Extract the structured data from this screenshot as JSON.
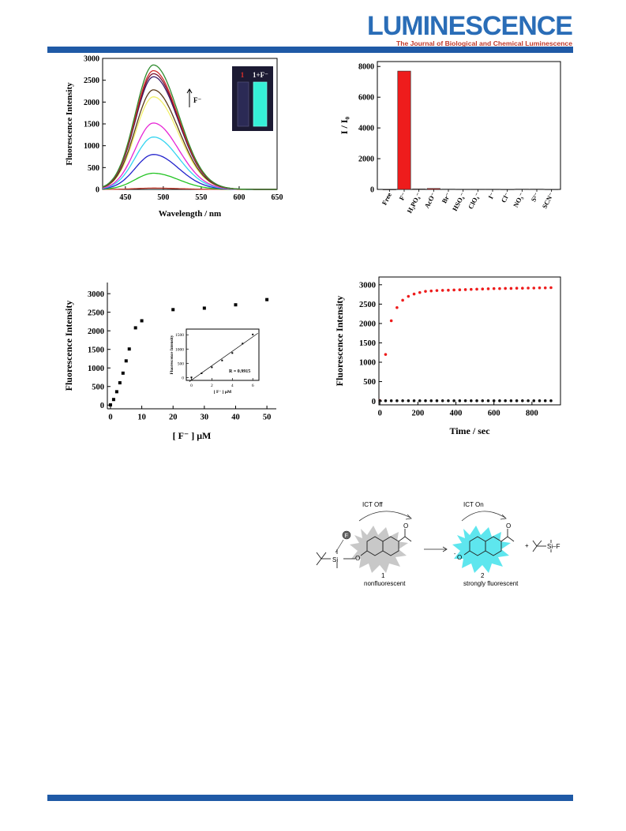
{
  "journal": {
    "title": "LUMINESCENCE",
    "subtitle": "The Journal of Biological and Chemical Luminescence",
    "brand_color": "#2a6db7",
    "subtitle_color": "#c0392b",
    "bar_color": "#1f5aa6"
  },
  "chart_data": [
    {
      "type": "line",
      "xlabel": "Wavelength / nm",
      "ylabel": "Fluorescence Intensity",
      "xlim": [
        420,
        650
      ],
      "ylim": [
        0,
        3000
      ],
      "x_ticks": [
        450,
        500,
        550,
        600,
        650
      ],
      "y_ticks": [
        0,
        500,
        1000,
        1500,
        2000,
        2500,
        3000
      ],
      "arrow_label": "F⁻",
      "inset_labels": [
        "1",
        "1+F⁻"
      ],
      "peak_x": 487,
      "series": [
        {
          "peak": 30,
          "color": "#c0392b"
        },
        {
          "peak": 370,
          "color": "#22c322"
        },
        {
          "peak": 800,
          "color": "#2222cc"
        },
        {
          "peak": 1200,
          "color": "#33d4f0"
        },
        {
          "peak": 1520,
          "color": "#e625d5"
        },
        {
          "peak": 2120,
          "color": "#f2f06a"
        },
        {
          "peak": 2280,
          "color": "#5a3a1a"
        },
        {
          "peak": 2580,
          "color": "#3a1a6a"
        },
        {
          "peak": 2650,
          "color": "#7a1030"
        },
        {
          "peak": 2720,
          "color": "#cf2a2a"
        },
        {
          "peak": 2850,
          "color": "#2e8b2e"
        }
      ]
    },
    {
      "type": "bar",
      "ylabel": "I / I₀",
      "ylim": [
        0,
        8000
      ],
      "y_ticks": [
        0,
        2000,
        4000,
        6000,
        8000
      ],
      "categories": [
        "Free",
        "F⁻",
        "H₂PO₄⁻",
        "AcO⁻",
        "Br⁻",
        "HSO₄⁻",
        "ClO₄⁻",
        "I⁻",
        "Cl⁻",
        "NO₃⁻",
        "S²⁻",
        "SCN⁻"
      ],
      "values": [
        1,
        7700,
        30,
        60,
        20,
        15,
        15,
        15,
        10,
        20,
        20,
        10
      ],
      "bar_color": "#ee1c1c"
    },
    {
      "type": "scatter",
      "xlabel": "[ F⁻ ] μM",
      "ylabel": "Fluorescence Intensity",
      "xlim": [
        -1,
        53
      ],
      "ylim": [
        -100,
        3300
      ],
      "x_ticks": [
        0,
        10,
        20,
        30,
        40,
        50
      ],
      "y_ticks": [
        0,
        500,
        1000,
        1500,
        2000,
        2500,
        3000
      ],
      "x": [
        0,
        1,
        2,
        3,
        4,
        5,
        6,
        8,
        10,
        20,
        30,
        40,
        50
      ],
      "y": [
        5,
        150,
        360,
        600,
        860,
        1190,
        1510,
        2080,
        2270,
        2570,
        2610,
        2700,
        2840
      ],
      "inset": {
        "type": "scatter",
        "xlabel": "[ F⁻ ] μM",
        "ylabel": "Fluorescence Intensity",
        "xlim": [
          -0.5,
          6.6
        ],
        "ylim": [
          -100,
          1700
        ],
        "x_ticks": [
          0,
          2,
          4,
          6
        ],
        "y_ticks": [
          0,
          500,
          1000,
          1500
        ],
        "x": [
          0,
          1,
          2,
          3,
          4,
          5,
          6
        ],
        "y": [
          5,
          150,
          360,
          600,
          860,
          1190,
          1510
        ],
        "annotation": "R = 0.9915"
      }
    },
    {
      "type": "scatter",
      "xlabel": "Time / sec",
      "ylabel": "Fluorescence Intensity",
      "xlim": [
        -5,
        950
      ],
      "ylim": [
        -100,
        3200
      ],
      "x_ticks": [
        0,
        200,
        400,
        600,
        800
      ],
      "y_ticks": [
        0,
        500,
        1000,
        1500,
        2000,
        2500,
        3000
      ],
      "series": [
        {
          "color": "#ee1c1c",
          "x": [
            0,
            30,
            60,
            90,
            120,
            150,
            180,
            210,
            240,
            270,
            300,
            330,
            360,
            390,
            420,
            450,
            480,
            510,
            540,
            570,
            600,
            630,
            660,
            690,
            720,
            750,
            780,
            810,
            840,
            870,
            900
          ],
          "y": [
            10,
            1200,
            2070,
            2410,
            2600,
            2700,
            2760,
            2800,
            2830,
            2840,
            2850,
            2855,
            2860,
            2865,
            2870,
            2875,
            2880,
            2885,
            2890,
            2895,
            2900,
            2900,
            2905,
            2905,
            2910,
            2910,
            2915,
            2915,
            2920,
            2920,
            2925
          ]
        },
        {
          "color": "#111111",
          "x": [
            0,
            30,
            60,
            90,
            120,
            150,
            180,
            210,
            240,
            270,
            300,
            330,
            360,
            390,
            420,
            450,
            480,
            510,
            540,
            570,
            600,
            630,
            660,
            690,
            720,
            750,
            780,
            810,
            840,
            870,
            900
          ],
          "y": [
            5,
            5,
            5,
            5,
            5,
            5,
            5,
            5,
            5,
            5,
            5,
            5,
            5,
            5,
            5,
            5,
            5,
            5,
            5,
            5,
            5,
            5,
            5,
            5,
            5,
            5,
            5,
            5,
            5,
            5,
            5
          ]
        }
      ]
    }
  ],
  "scheme": {
    "ict_off": "ICT Off",
    "ict_on": "ICT On",
    "fluoride_symbol": "F",
    "si": "Si",
    "oxygen": "O",
    "anion": "-",
    "plus": "+",
    "sif": "Si–F",
    "compound_1": "1",
    "compound_2": "2",
    "label_1": "nonfluorescent",
    "label_2": "strongly fluorescent",
    "glow_color": "#5ee6ee"
  }
}
